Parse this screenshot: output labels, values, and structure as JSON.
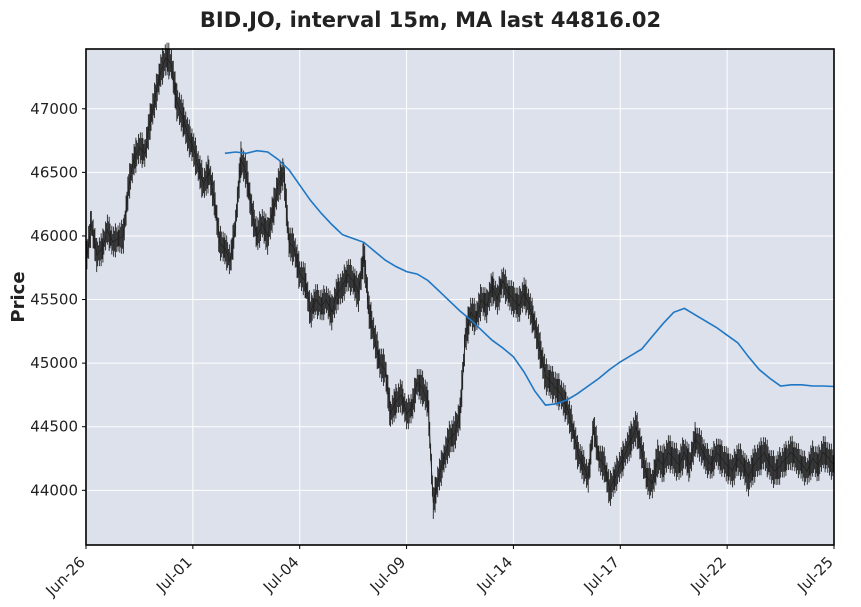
{
  "chart_data": {
    "type": "candlestick",
    "title": "BID.JO, interval 15m, MA last 44816.02",
    "ylabel": "Price",
    "xlabel": "",
    "ylim": [
      43570,
      47470
    ],
    "yticks": [
      44000,
      44500,
      45000,
      45500,
      46000,
      46500,
      47000
    ],
    "ytick_labels": [
      "44000",
      "44500",
      "45000",
      "45500",
      "46000",
      "46500",
      "47000"
    ],
    "xticks": [
      "Jun-26",
      "Jul-01",
      "Jul-04",
      "Jul-09",
      "Jul-14",
      "Jul-17",
      "Jul-22",
      "Jul-25"
    ],
    "grid": true,
    "background_color": "#dce1ec",
    "price_color": "#222222",
    "ma_color": "#1f77c4",
    "price_series": {
      "name": "price",
      "x": [
        0,
        0.5,
        1,
        1.5,
        2,
        2.5,
        3,
        3.5,
        4,
        4.5,
        5,
        5.5,
        6,
        6.5,
        7,
        7.5,
        8,
        8.5,
        9,
        9.5,
        10,
        10.5,
        11,
        11.5,
        12,
        12.5,
        13,
        13.5,
        14,
        14.5,
        15,
        15.5,
        16,
        16.5,
        17,
        17.5,
        18,
        18.5,
        19,
        19.5,
        20,
        20.5,
        21,
        21.5,
        22,
        22.5,
        23,
        23.5,
        24,
        24.5,
        25,
        25.5,
        26,
        26.5,
        27,
        27.5,
        28,
        28.5,
        29,
        29.5,
        30,
        30.5,
        31,
        31.5,
        32,
        32.5,
        33,
        33.5,
        34,
        34.5,
        35,
        35.5,
        36,
        36.5,
        37,
        37.5,
        38,
        38.5,
        39,
        39.5,
        40,
        40.5,
        41,
        41.5,
        42,
        42.5,
        43,
        43.5,
        44,
        44.5,
        45,
        45.5,
        46,
        46.5,
        47,
        47.5,
        48,
        48.5,
        49,
        49.5,
        50,
        50.5,
        51,
        51.5,
        52,
        52.5,
        53,
        53.5,
        54,
        54.5,
        55,
        55.5,
        56,
        56.5,
        57,
        57.5,
        58,
        58.5,
        59,
        59.5,
        60,
        60.5,
        61,
        61.5,
        62,
        62.5,
        63,
        63.5,
        64,
        64.5,
        65,
        65.5,
        66,
        66.5,
        67,
        67.5,
        68,
        68.5,
        69,
        69.5,
        70
      ],
      "y": [
        45800,
        46100,
        45850,
        45900,
        46050,
        45950,
        45980,
        46000,
        46400,
        46600,
        46700,
        46650,
        46900,
        47100,
        47300,
        47400,
        47350,
        47050,
        46950,
        46800,
        46700,
        46550,
        46400,
        46500,
        46300,
        45950,
        45900,
        45800,
        46100,
        46600,
        46500,
        46200,
        46000,
        46100,
        46000,
        46200,
        46400,
        46500,
        45950,
        45900,
        45700,
        45650,
        45400,
        45500,
        45450,
        45500,
        45400,
        45550,
        45600,
        45700,
        45650,
        45550,
        45850,
        45400,
        45200,
        45000,
        44950,
        44600,
        44700,
        44750,
        44600,
        44650,
        44850,
        44800,
        44700,
        43900,
        44100,
        44250,
        44400,
        44450,
        44600,
        45200,
        45400,
        45350,
        45500,
        45450,
        45600,
        45500,
        45650,
        45550,
        45500,
        45450,
        45550,
        45450,
        45300,
        45100,
        44900,
        44850,
        44800,
        44750,
        44650,
        44500,
        44300,
        44200,
        44100,
        44500,
        44250,
        44200,
        44000,
        44100,
        44200,
        44300,
        44400,
        44500,
        44300,
        44100,
        44050,
        44250,
        44200,
        44300,
        44250,
        44200,
        44300,
        44200,
        44400,
        44350,
        44250,
        44200,
        44300,
        44250,
        44200,
        44150,
        44250,
        44200,
        44100,
        44200,
        44250,
        44300,
        44200,
        44150,
        44200,
        44250,
        44300,
        44250,
        44200,
        44150,
        44250,
        44200,
        44300,
        44250,
        44200
      ]
    },
    "ma_series": {
      "name": "MA",
      "x": [
        13,
        14,
        15,
        16,
        17,
        18,
        19,
        20,
        21,
        22,
        23,
        24,
        25,
        26,
        27,
        28,
        29,
        30,
        31,
        32,
        33,
        34,
        35,
        36,
        37,
        38,
        39,
        40,
        41,
        42,
        43,
        44,
        45,
        46,
        47,
        48,
        49,
        50,
        51,
        52,
        53,
        54,
        55,
        56,
        57,
        58,
        59,
        60,
        61,
        62,
        63,
        64,
        65,
        66,
        67,
        68,
        69,
        70
      ],
      "y": [
        46650,
        46660,
        46650,
        46670,
        46660,
        46600,
        46520,
        46400,
        46280,
        46180,
        46090,
        46010,
        45980,
        45950,
        45880,
        45810,
        45760,
        45720,
        45700,
        45650,
        45570,
        45490,
        45410,
        45340,
        45260,
        45180,
        45120,
        45050,
        44930,
        44780,
        44670,
        44680,
        44710,
        44760,
        44820,
        44880,
        44950,
        45010,
        45060,
        45110,
        45210,
        45310,
        45400,
        45430,
        45380,
        45330,
        45280,
        45220,
        45160,
        45050,
        44950,
        44880,
        44820,
        44830,
        44830,
        44820,
        44820,
        44816.02
      ]
    }
  }
}
